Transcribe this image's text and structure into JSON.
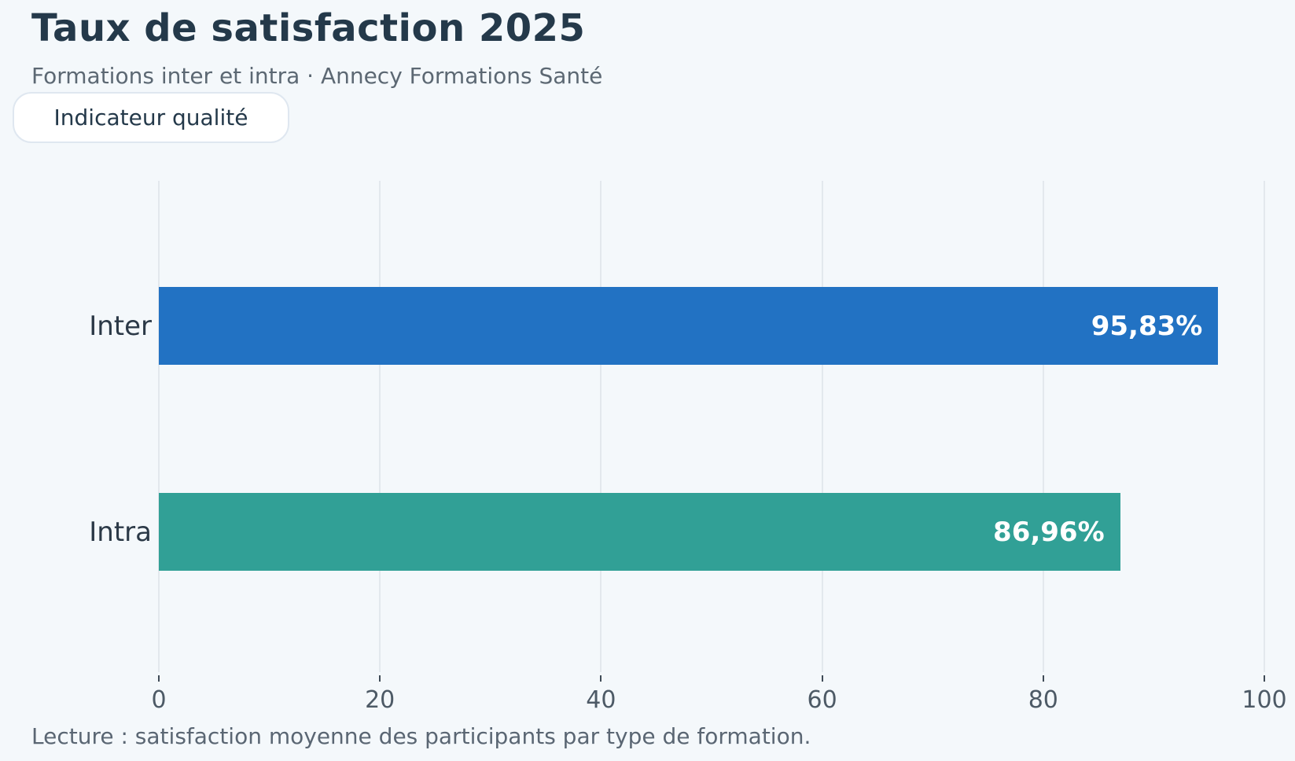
{
  "page": {
    "title": "Taux de satisfaction 2025",
    "subtitle": "Formations inter et intra · Annecy Formations Santé",
    "badge_label": "Indicateur qualité",
    "footer_note": "Lecture : satisfaction moyenne des participants par type de formation."
  },
  "colors": {
    "background": "#f4f8fb",
    "title_text": "#24394a",
    "subtitle_text": "#5c6873",
    "badge_border": "#dfe7f0",
    "badge_background": "#ffffff",
    "gridline": "#e3e8ed",
    "tick_text": "#4d5a66",
    "category_text": "#2b3947",
    "value_text": "#ffffff",
    "bar_inter": "#2272c3",
    "bar_intra": "#31a096"
  },
  "chart_data": {
    "type": "bar",
    "orientation": "horizontal",
    "title": "Taux de satisfaction 2025",
    "subtitle": "Formations inter et intra · Annecy Formations Santé",
    "categories": [
      "Inter",
      "Intra"
    ],
    "values": [
      95.83,
      86.96
    ],
    "value_labels": [
      "95,83%",
      "86,96%"
    ],
    "bar_colors": [
      "#2272c3",
      "#31a096"
    ],
    "xlabel": "",
    "ylabel": "",
    "xlim": [
      0,
      100
    ],
    "xticks": [
      0,
      20,
      40,
      60,
      80,
      100
    ],
    "grid": "vertical-gridlines-on",
    "legend": "none",
    "note": "Lecture : satisfaction moyenne des participants par type de formation."
  }
}
